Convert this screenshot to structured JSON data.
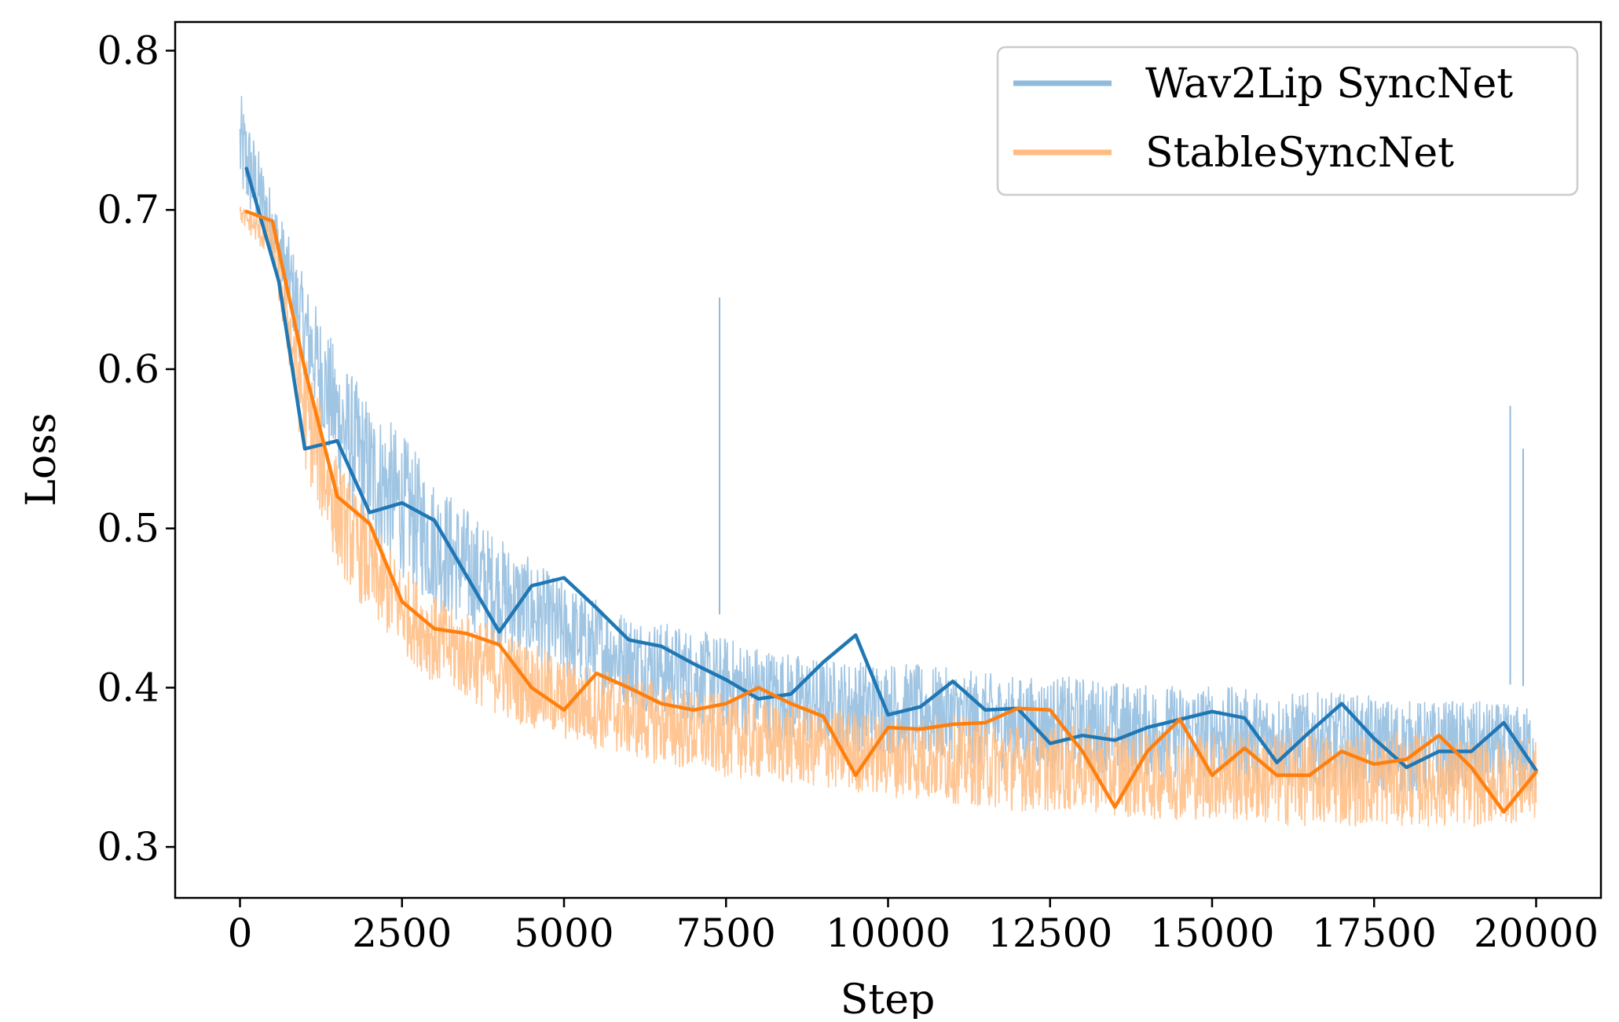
{
  "chart_data": {
    "type": "line",
    "title": "",
    "xlabel": "Step",
    "ylabel": "Loss",
    "xlim": [
      -1000,
      21000
    ],
    "ylim": [
      0.268,
      0.818
    ],
    "x_ticks": [
      0,
      2500,
      5000,
      7500,
      10000,
      12500,
      15000,
      17500,
      20000
    ],
    "x_tick_labels": [
      "0",
      "2500",
      "5000",
      "7500",
      "10000",
      "12500",
      "15000",
      "17500",
      "20000"
    ],
    "y_ticks": [
      0.3,
      0.4,
      0.5,
      0.6,
      0.7,
      0.8
    ],
    "y_tick_labels": [
      "0.3",
      "0.4",
      "0.5",
      "0.6",
      "0.7",
      "0.8"
    ],
    "grid": false,
    "legend_position": "top-right",
    "series": [
      {
        "name": "Wav2Lip SyncNet",
        "color": "#1f77b4",
        "raw_color": "#8fbbde",
        "spikes": [
          [
            7400,
            0.645
          ],
          [
            19600,
            0.577
          ],
          [
            19800,
            0.55
          ]
        ],
        "raw_envelope": {
          "x": [
            0,
            500,
            1000,
            1500,
            2000,
            2500,
            3000,
            4000,
            5000,
            6000,
            7000,
            8000,
            9000,
            10000,
            11000,
            12000,
            13000,
            14000,
            15000,
            16000,
            17000,
            18000,
            19000,
            20000
          ],
          "low": [
            0.69,
            0.66,
            0.58,
            0.51,
            0.47,
            0.45,
            0.43,
            0.41,
            0.39,
            0.375,
            0.365,
            0.355,
            0.35,
            0.345,
            0.34,
            0.335,
            0.335,
            0.33,
            0.33,
            0.325,
            0.325,
            0.32,
            0.32,
            0.32
          ],
          "high": [
            0.79,
            0.72,
            0.67,
            0.63,
            0.6,
            0.58,
            0.55,
            0.51,
            0.48,
            0.46,
            0.45,
            0.44,
            0.43,
            0.43,
            0.425,
            0.42,
            0.42,
            0.415,
            0.415,
            0.41,
            0.41,
            0.405,
            0.405,
            0.4
          ]
        },
        "x": [
          100,
          600,
          1000,
          1500,
          2000,
          2500,
          3000,
          3500,
          4000,
          4500,
          5000,
          5500,
          6000,
          6500,
          7000,
          7500,
          8000,
          8500,
          9000,
          9500,
          10000,
          10500,
          11000,
          11500,
          12000,
          12500,
          13000,
          13500,
          14000,
          14500,
          15000,
          15500,
          16000,
          16500,
          17000,
          17500,
          18000,
          18500,
          19000,
          19500,
          20000
        ],
        "values": [
          0.726,
          0.655,
          0.55,
          0.555,
          0.51,
          0.516,
          0.505,
          0.47,
          0.435,
          0.464,
          0.469,
          0.45,
          0.43,
          0.426,
          0.415,
          0.405,
          0.393,
          0.396,
          0.416,
          0.433,
          0.383,
          0.388,
          0.404,
          0.386,
          0.387,
          0.365,
          0.37,
          0.367,
          0.375,
          0.38,
          0.385,
          0.381,
          0.353,
          0.372,
          0.39,
          0.368,
          0.35,
          0.36,
          0.36,
          0.378,
          0.348
        ]
      },
      {
        "name": "StableSyncNet",
        "color": "#ff7f0e",
        "raw_color": "#ffbb80",
        "spikes": [],
        "raw_envelope": {
          "x": [
            0,
            500,
            1000,
            1500,
            2000,
            2500,
            3000,
            4000,
            5000,
            6000,
            7000,
            8000,
            9000,
            10000,
            11000,
            12000,
            13000,
            14000,
            15000,
            16000,
            17000,
            18000,
            19000,
            20000
          ],
          "low": [
            0.69,
            0.66,
            0.52,
            0.46,
            0.43,
            0.41,
            0.39,
            0.37,
            0.355,
            0.345,
            0.335,
            0.33,
            0.325,
            0.32,
            0.315,
            0.31,
            0.31,
            0.305,
            0.305,
            0.3,
            0.3,
            0.3,
            0.3,
            0.305
          ],
          "high": [
            0.705,
            0.7,
            0.63,
            0.56,
            0.52,
            0.49,
            0.47,
            0.45,
            0.43,
            0.42,
            0.41,
            0.405,
            0.4,
            0.395,
            0.395,
            0.39,
            0.39,
            0.385,
            0.385,
            0.385,
            0.385,
            0.385,
            0.38,
            0.38
          ]
        },
        "x": [
          100,
          500,
          1000,
          1500,
          2000,
          2500,
          3000,
          3500,
          4000,
          4500,
          5000,
          5500,
          6000,
          6500,
          7000,
          7500,
          8000,
          8500,
          9000,
          9500,
          10000,
          10500,
          11000,
          11500,
          12000,
          12500,
          13000,
          13500,
          14000,
          14500,
          15000,
          15500,
          16000,
          16500,
          17000,
          17500,
          18000,
          18500,
          19000,
          19500,
          20000
        ],
        "values": [
          0.699,
          0.693,
          0.6,
          0.52,
          0.503,
          0.454,
          0.437,
          0.434,
          0.427,
          0.4,
          0.386,
          0.409,
          0.4,
          0.39,
          0.386,
          0.39,
          0.4,
          0.39,
          0.382,
          0.345,
          0.375,
          0.374,
          0.377,
          0.378,
          0.387,
          0.386,
          0.36,
          0.325,
          0.36,
          0.38,
          0.345,
          0.362,
          0.345,
          0.345,
          0.36,
          0.352,
          0.355,
          0.37,
          0.35,
          0.322,
          0.347
        ]
      }
    ]
  }
}
